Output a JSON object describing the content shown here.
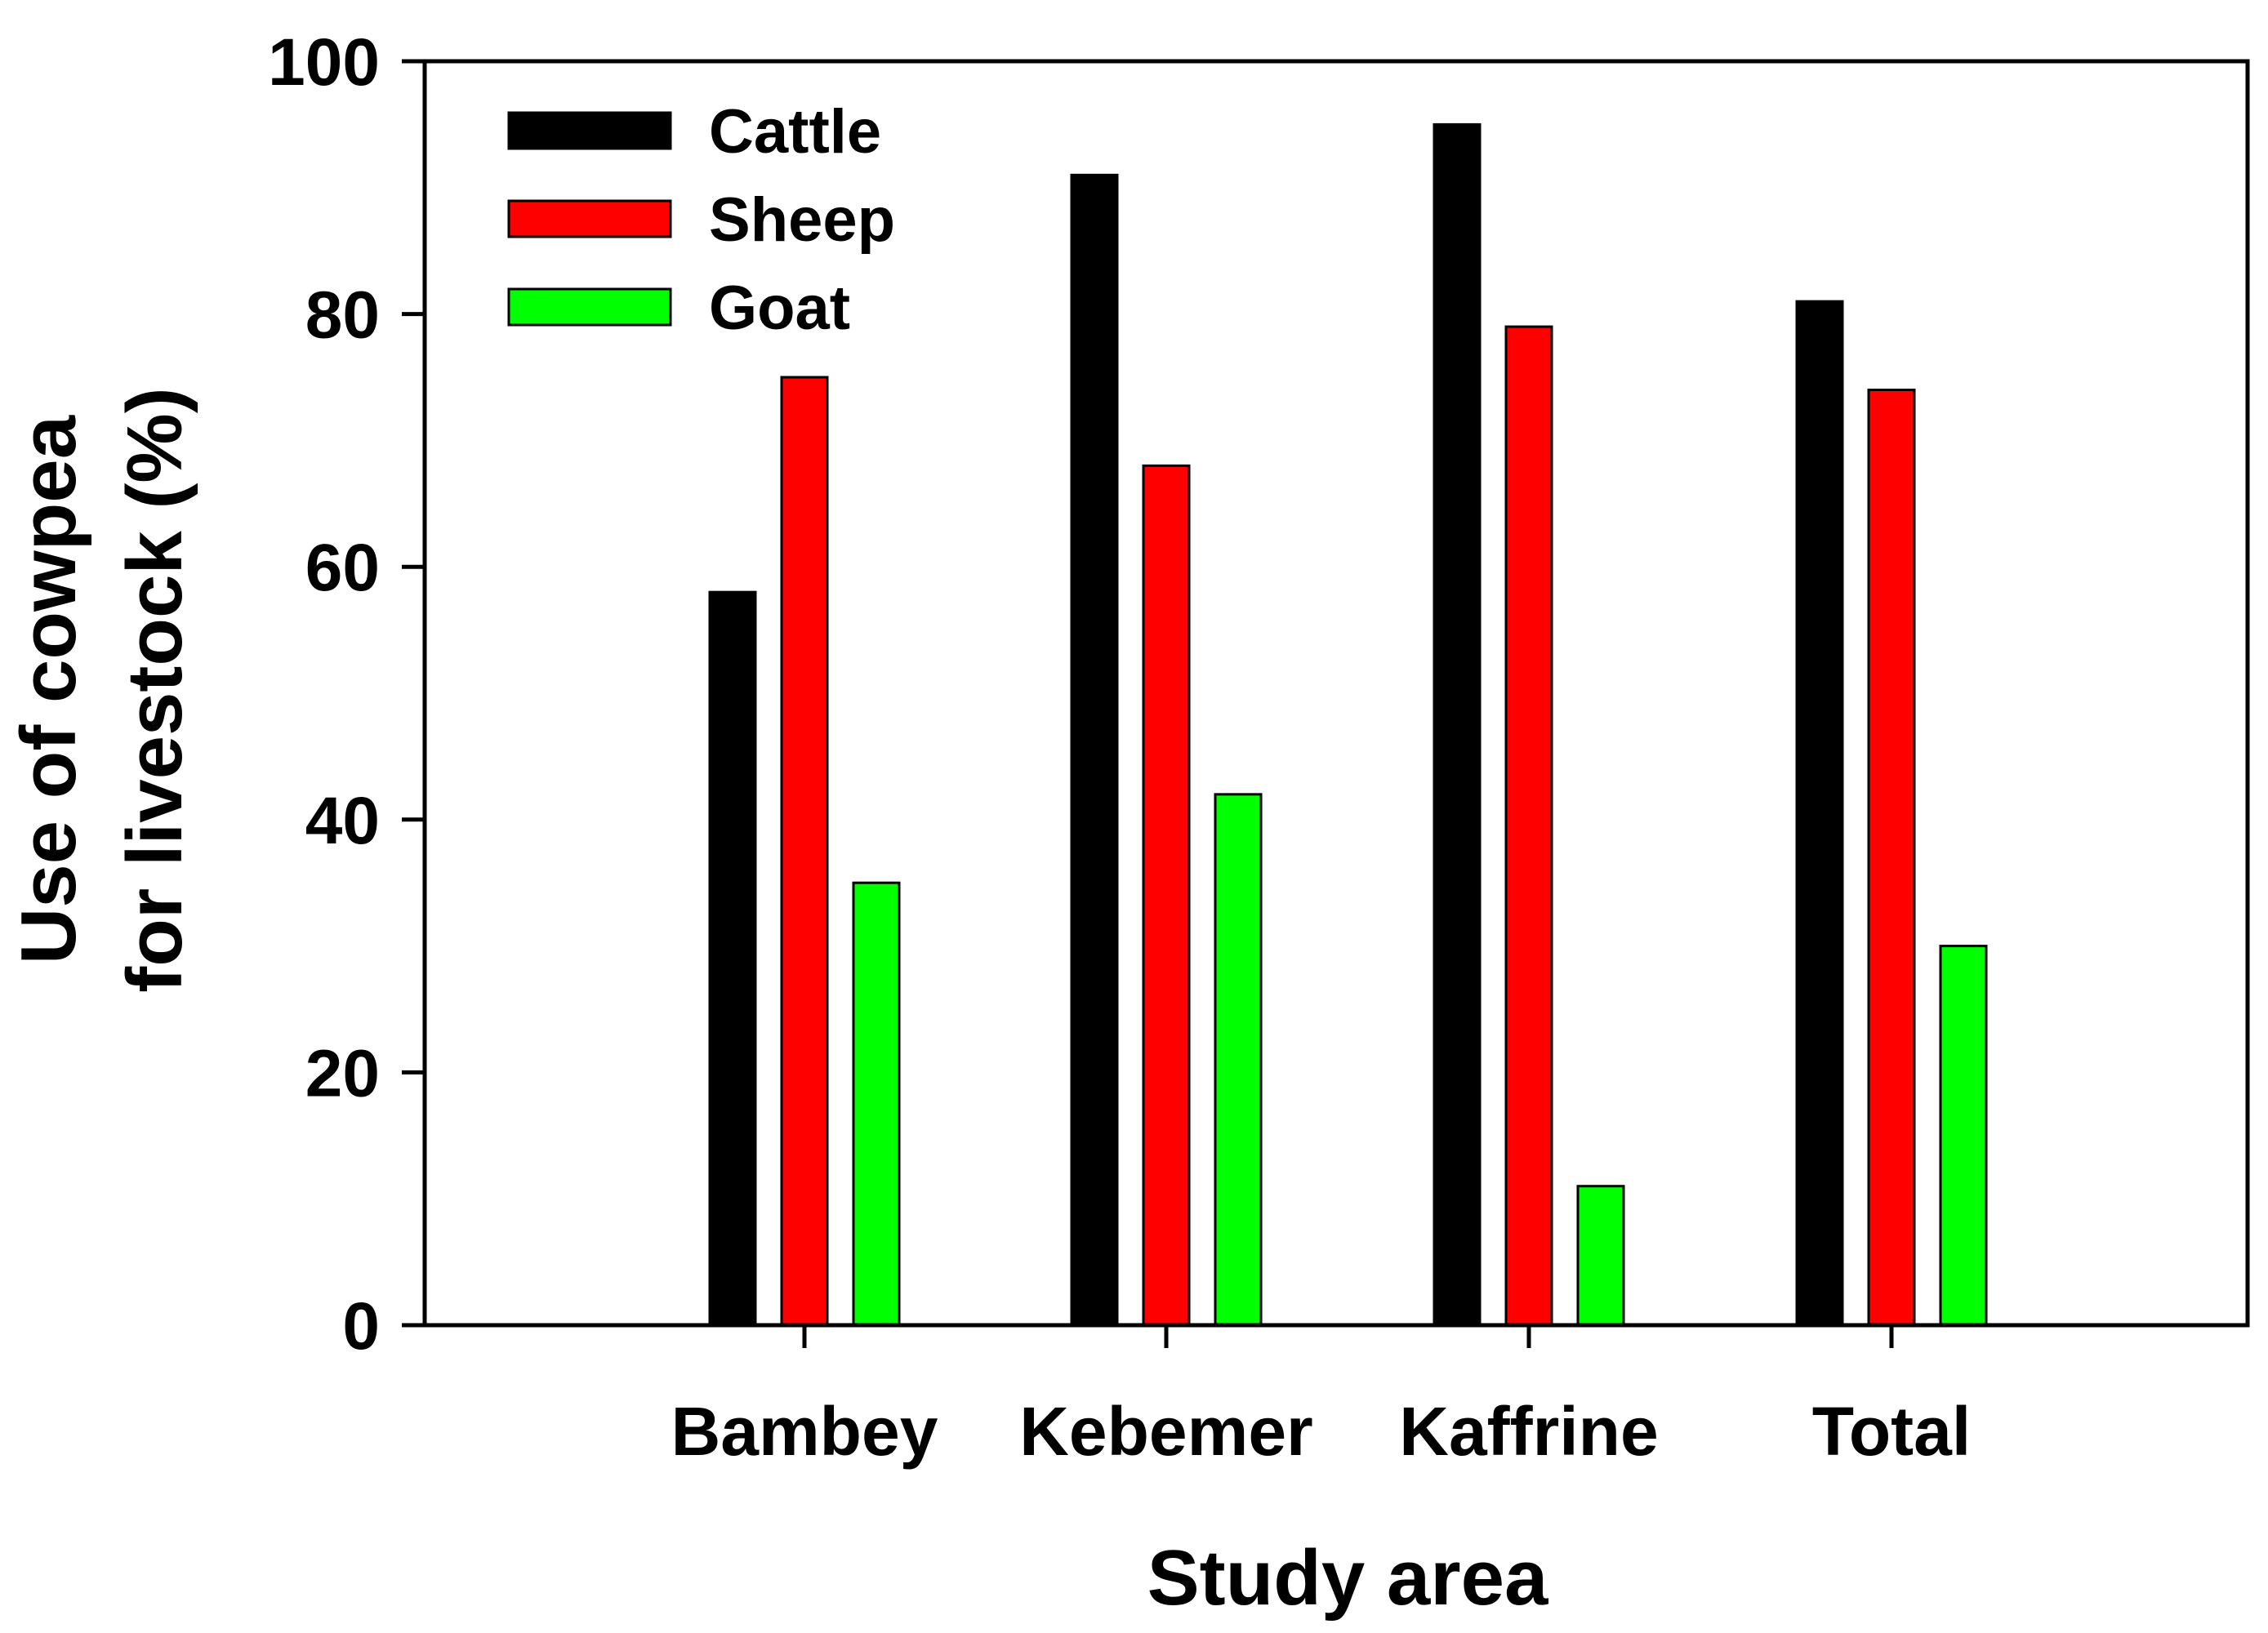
{
  "chart_data": {
    "type": "bar",
    "title": "",
    "xlabel": "Study area",
    "ylabel_lines": [
      "Use of cowpea",
      "for livestock (%)"
    ],
    "categories": [
      "Bambey",
      "Kebemer",
      "Kaffrine",
      "Total"
    ],
    "series": [
      {
        "name": "Cattle",
        "color": "#000000",
        "values": [
          58,
          91,
          95,
          81
        ]
      },
      {
        "name": "Sheep",
        "color": "#ff0000",
        "values": [
          75,
          68,
          79,
          74
        ]
      },
      {
        "name": "Goat",
        "color": "#00ff00",
        "values": [
          35,
          42,
          11,
          30
        ]
      }
    ],
    "ylim": [
      0,
      100
    ],
    "yticks": [
      0,
      20,
      40,
      60,
      80,
      100
    ],
    "ytick_labels": [
      "0",
      "20",
      "40",
      "60",
      "80",
      "100"
    ],
    "grid": false,
    "legend_position": "top-left"
  }
}
